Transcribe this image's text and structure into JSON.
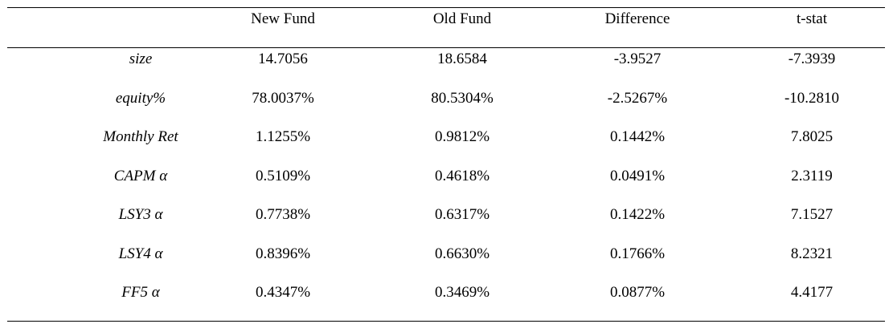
{
  "table": {
    "headers": [
      "",
      "New Fund",
      "Old Fund",
      "Difference",
      "t-stat"
    ],
    "rows": [
      {
        "label": "size",
        "values": [
          "14.7056",
          "18.6584",
          "-3.9527",
          "-7.3939"
        ]
      },
      {
        "label": "equity%",
        "values": [
          "78.0037%",
          "80.5304%",
          "-2.5267%",
          "-10.2810"
        ]
      },
      {
        "label": "Monthly Ret",
        "values": [
          "1.1255%",
          "0.9812%",
          "0.1442%",
          "7.8025"
        ]
      },
      {
        "label": "CAPM α",
        "values": [
          "0.5109%",
          "0.4618%",
          "0.0491%",
          "2.3119"
        ]
      },
      {
        "label": "LSY3 α",
        "values": [
          "0.7738%",
          "0.6317%",
          "0.1422%",
          "7.1527"
        ]
      },
      {
        "label": "LSY4 α",
        "values": [
          "0.8396%",
          "0.6630%",
          "0.1766%",
          "8.2321"
        ]
      },
      {
        "label": "FF5 α",
        "values": [
          "0.4347%",
          "0.3469%",
          "0.0877%",
          "4.4177"
        ]
      }
    ]
  }
}
